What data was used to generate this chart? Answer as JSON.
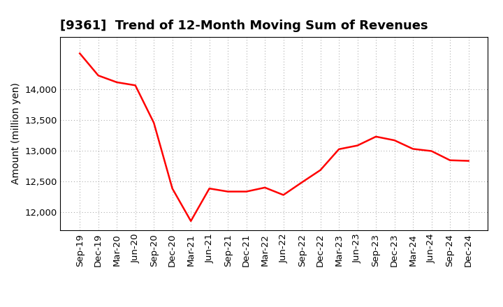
{
  "title": "[9361]  Trend of 12-Month Moving Sum of Revenues",
  "ylabel": "Amount (million yen)",
  "line_color": "#FF0000",
  "background_color": "#FFFFFF",
  "grid_color": "#999999",
  "x_labels": [
    "Sep-19",
    "Dec-19",
    "Mar-20",
    "Jun-20",
    "Sep-20",
    "Dec-20",
    "Mar-21",
    "Jun-21",
    "Sep-21",
    "Dec-21",
    "Mar-22",
    "Jun-22",
    "Sep-22",
    "Dec-22",
    "Mar-23",
    "Jun-23",
    "Sep-23",
    "Dec-23",
    "Mar-24",
    "Jun-24",
    "Sep-24",
    "Dec-24"
  ],
  "values": [
    14580,
    14220,
    14110,
    14060,
    13450,
    12380,
    11850,
    12380,
    12330,
    12330,
    12395,
    12275,
    12480,
    12680,
    13020,
    13080,
    13225,
    13165,
    13025,
    12990,
    12840,
    12830
  ],
  "ylim_min": 11700,
  "ylim_max": 14850,
  "yticks": [
    12000,
    12500,
    13000,
    13500,
    14000
  ],
  "title_fontsize": 13,
  "label_fontsize": 10,
  "tick_fontsize": 9.5
}
